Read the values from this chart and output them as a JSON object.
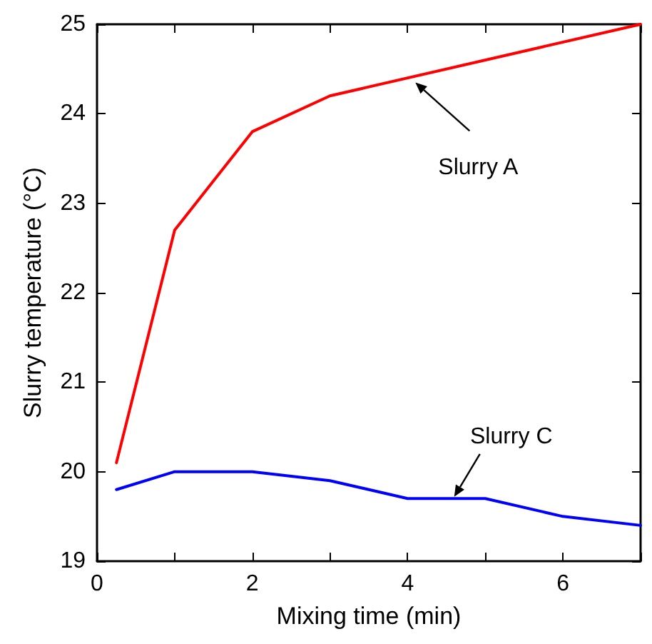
{
  "chart_data": {
    "type": "line",
    "xlabel": "Mixing time (min)",
    "ylabel": "Slurry temperature (°C)",
    "xlim": [
      0,
      7
    ],
    "ylim": [
      19,
      25
    ],
    "xticks": [
      0,
      {
        "value": 1,
        "label": null
      },
      2,
      {
        "value": 3,
        "label": null
      },
      4,
      {
        "value": 5,
        "label": null
      },
      6,
      {
        "value": 7,
        "label": null
      }
    ],
    "yticks": [
      19,
      20,
      21,
      22,
      23,
      24,
      25
    ],
    "grid": false,
    "marker": "none",
    "line_style": "solid",
    "series": [
      {
        "color": "#ff0000",
        "x": [
          0.25,
          1,
          2,
          3,
          7
        ],
        "values": [
          20.1,
          22.7,
          23.8,
          24.2,
          25.0
        ]
      },
      {
        "color": "#0000ff",
        "x": [
          0.25,
          1,
          2,
          3,
          4,
          5,
          6,
          7
        ],
        "values": [
          19.8,
          20.0,
          20.0,
          19.9,
          19.7,
          19.7,
          19.5,
          19.4
        ]
      }
    ],
    "annotations": [
      {
        "text": "Slurry A",
        "x": 4.1,
        "y": 24.35
      },
      {
        "text": "Slurry C",
        "x": 4.6,
        "y": 19.72
      }
    ]
  }
}
